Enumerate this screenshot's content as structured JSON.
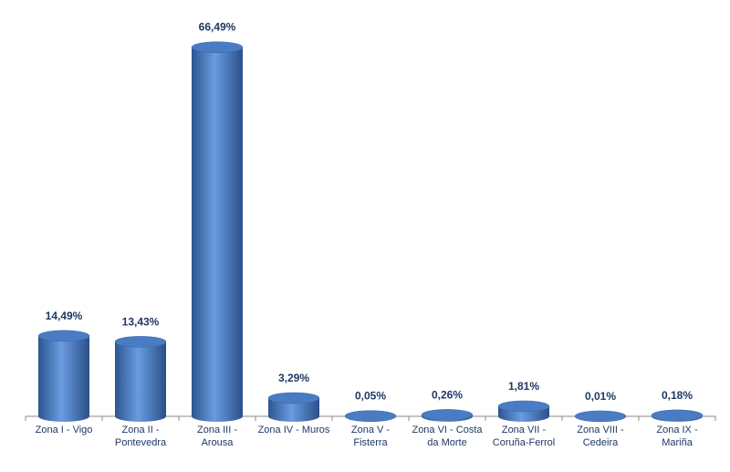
{
  "chart_data": {
    "type": "bar",
    "categories": [
      "Zona I - Vigo",
      "Zona II - Pontevedra",
      "Zona III - Arousa",
      "Zona IV - Muros",
      "Zona V - Fisterra",
      "Zona VI - Costa da Morte",
      "Zona VII - Coruña-Ferrol",
      "Zona VIII - Cedeira",
      "Zona IX - Mariña"
    ],
    "values": [
      14.49,
      13.43,
      66.49,
      3.29,
      0.05,
      0.26,
      1.81,
      0.01,
      0.18
    ],
    "value_labels": [
      "14,49%",
      "13,43%",
      "66,49%",
      "3,29%",
      "0,05%",
      "0,26%",
      "1,81%",
      "0,01%",
      "0,18%"
    ],
    "color": "#4a7cc4"
  }
}
